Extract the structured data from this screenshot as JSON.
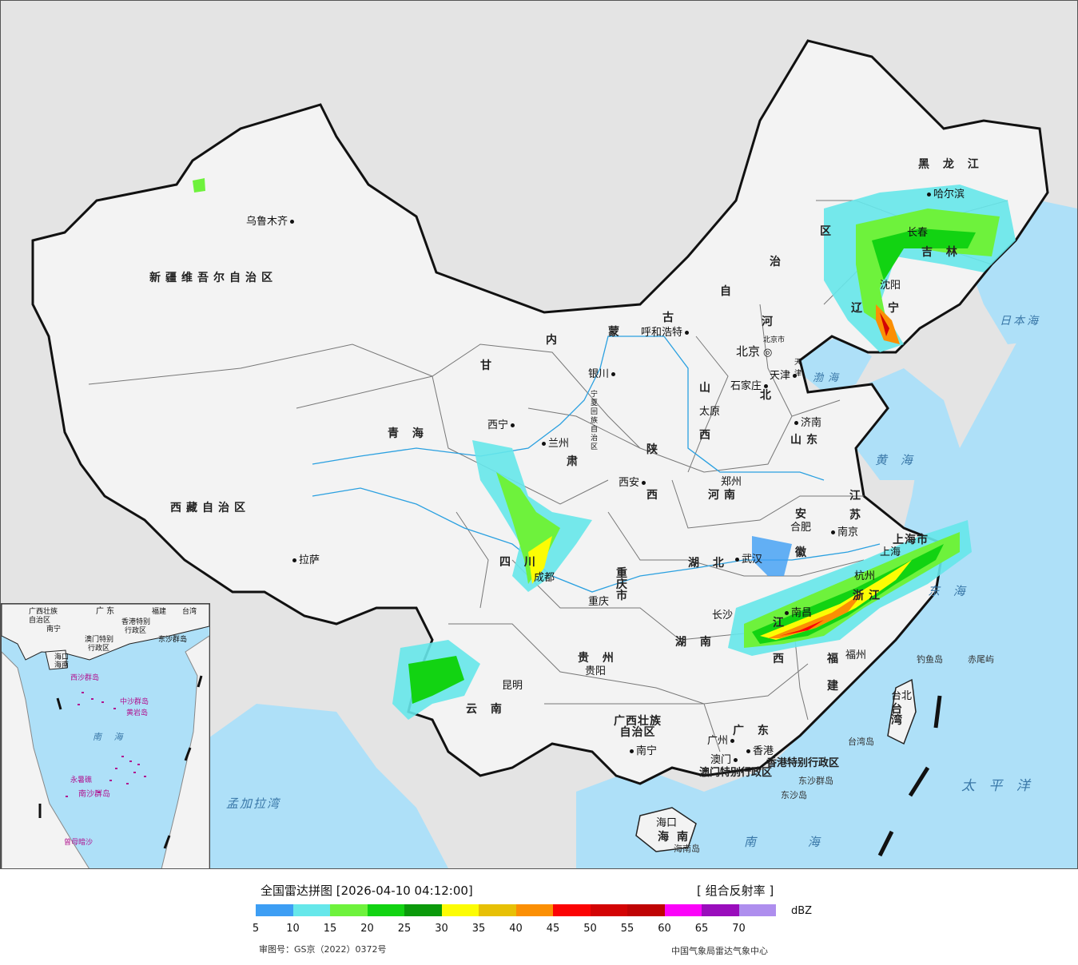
{
  "map": {
    "places": [
      {
        "id": "urumqi",
        "text": "乌鲁木齐",
        "dot": "right"
      },
      {
        "id": "lhasa",
        "text": "拉萨",
        "dot": "left"
      },
      {
        "id": "xining",
        "text": "西宁",
        "dot": "right"
      },
      {
        "id": "lanzhou",
        "text": "兰州",
        "dot": "left"
      },
      {
        "id": "yinchuan",
        "text": "银川",
        "dot": "below"
      },
      {
        "id": "hohhot",
        "text": "呼和浩特",
        "dot": "right"
      },
      {
        "id": "beijing",
        "text": "北京",
        "dot": "right"
      },
      {
        "id": "beijing_small",
        "text": "北京市",
        "dot": "none"
      },
      {
        "id": "tianjin",
        "text": "天津",
        "dot": "right"
      },
      {
        "id": "tianjin_small",
        "text": "天津",
        "dot": "none"
      },
      {
        "id": "shijiazhuang",
        "text": "石家庄",
        "dot": "right"
      },
      {
        "id": "taiyuan",
        "text": "太原",
        "dot": "above"
      },
      {
        "id": "jinan",
        "text": "济南",
        "dot": "left"
      },
      {
        "id": "zhengzhou",
        "text": "郑州",
        "dot": "below"
      },
      {
        "id": "xian",
        "text": "西安",
        "dot": "right"
      },
      {
        "id": "chengdu",
        "text": "成都",
        "dot": "above"
      },
      {
        "id": "chongqing",
        "text": "重庆",
        "dot": "above"
      },
      {
        "id": "wuhan",
        "text": "武汉",
        "dot": "left"
      },
      {
        "id": "hefei",
        "text": "合肥",
        "dot": "above"
      },
      {
        "id": "nanjing",
        "text": "南京",
        "dot": "left"
      },
      {
        "id": "shanghai",
        "text": "上海",
        "dot": "above"
      },
      {
        "id": "hangzhou",
        "text": "杭州",
        "dot": "above"
      },
      {
        "id": "nanchang",
        "text": "南昌",
        "dot": "left"
      },
      {
        "id": "changsha",
        "text": "长沙",
        "dot": "below"
      },
      {
        "id": "guiyang",
        "text": "贵阳",
        "dot": "above"
      },
      {
        "id": "kunming",
        "text": "昆明",
        "dot": "below"
      },
      {
        "id": "nanning",
        "text": "南宁",
        "dot": "left"
      },
      {
        "id": "guangzhou",
        "text": "广州",
        "dot": "right"
      },
      {
        "id": "hongkong",
        "text": "香港",
        "dot": "left"
      },
      {
        "id": "macau",
        "text": "澳门",
        "dot": "right"
      },
      {
        "id": "fuzhou",
        "text": "福州",
        "dot": "below"
      },
      {
        "id": "taibei",
        "text": "台北",
        "dot": "above"
      },
      {
        "id": "haikou",
        "text": "海口",
        "dot": "above"
      },
      {
        "id": "shenyang",
        "text": "沈阳",
        "dot": "below"
      },
      {
        "id": "changchun",
        "text": "长春",
        "dot": "above"
      },
      {
        "id": "harbin",
        "text": "哈尔滨",
        "dot": "left"
      }
    ],
    "regions": [
      {
        "id": "xinjiang",
        "text": "新疆维吾尔自治区"
      },
      {
        "id": "xizang",
        "text": "西藏自治区"
      },
      {
        "id": "qinghai",
        "text": "青 海"
      },
      {
        "id": "gansu_1",
        "text": "甘"
      },
      {
        "id": "gansu_2",
        "text": "肃"
      },
      {
        "id": "neimenggu_1",
        "text": "内"
      },
      {
        "id": "neimenggu_2",
        "text": "蒙"
      },
      {
        "id": "neimenggu_3",
        "text": "古"
      },
      {
        "id": "neimenggu_4",
        "text": "自"
      },
      {
        "id": "neimenggu_5",
        "text": "治"
      },
      {
        "id": "neimenggu_6",
        "text": "区"
      },
      {
        "id": "ningxia",
        "text": "宁夏回族自治区"
      },
      {
        "id": "shaanxi_1",
        "text": "陕"
      },
      {
        "id": "shaanxi_2",
        "text": "西"
      },
      {
        "id": "shanxi_1",
        "text": "山"
      },
      {
        "id": "shanxi_2",
        "text": "西"
      },
      {
        "id": "hebei_1",
        "text": "河"
      },
      {
        "id": "hebei_2",
        "text": "北"
      },
      {
        "id": "shandong",
        "text": "山东"
      },
      {
        "id": "henan",
        "text": "河南"
      },
      {
        "id": "jiangsu_1",
        "text": "江"
      },
      {
        "id": "jiangsu_2",
        "text": "苏"
      },
      {
        "id": "anhui_1",
        "text": "安"
      },
      {
        "id": "anhui_2",
        "text": "徽"
      },
      {
        "id": "shanghai_city",
        "text": "上海市"
      },
      {
        "id": "zhejiang",
        "text": "浙江"
      },
      {
        "id": "hubei",
        "text": "湖 北"
      },
      {
        "id": "hunan",
        "text": "湖 南"
      },
      {
        "id": "jiangxi_1",
        "text": "江"
      },
      {
        "id": "jiangxi_2",
        "text": "西"
      },
      {
        "id": "fujian_1",
        "text": "福"
      },
      {
        "id": "fujian_2",
        "text": "建"
      },
      {
        "id": "sichuan",
        "text": "四 川"
      },
      {
        "id": "chongqing_city",
        "text": "重庆市"
      },
      {
        "id": "guizhou",
        "text": "贵 州"
      },
      {
        "id": "yunnan",
        "text": "云 南"
      },
      {
        "id": "guangxi",
        "text": "广西壮族自治区"
      },
      {
        "id": "guangdong",
        "text": "广 东"
      },
      {
        "id": "hainan",
        "text": "海南"
      },
      {
        "id": "taiwan",
        "text": "台湾"
      },
      {
        "id": "hongkong_sar",
        "text": "香港特别行政区"
      },
      {
        "id": "macau_sar",
        "text": "澳门特别行政区"
      },
      {
        "id": "heilongjiang",
        "text": "黑 龙 江"
      },
      {
        "id": "jilin",
        "text": "吉 林"
      },
      {
        "id": "liaoning_1",
        "text": "辽"
      },
      {
        "id": "liaoning_2",
        "text": "宁"
      }
    ],
    "seas": [
      {
        "id": "bohai",
        "text": "渤海"
      },
      {
        "id": "huanghai",
        "text": "黄 海"
      },
      {
        "id": "donghai",
        "text": "东 海"
      },
      {
        "id": "nanhai",
        "text": "南 海"
      },
      {
        "id": "taipingyang",
        "text": "太 平 洋"
      },
      {
        "id": "ribenhai",
        "text": "日本海"
      },
      {
        "id": "mengjialawan",
        "text": "孟加拉湾"
      }
    ],
    "islands": [
      {
        "id": "diaoyudao",
        "text": "钓鱼岛"
      },
      {
        "id": "chiweiyu",
        "text": "赤尾屿"
      },
      {
        "id": "taiwandao",
        "text": "台湾岛"
      },
      {
        "id": "dongshaqundao",
        "text": "东沙群岛"
      },
      {
        "id": "dongshadao",
        "text": "东沙岛"
      },
      {
        "id": "hainandao",
        "text": "海南岛"
      }
    ]
  },
  "inset": {
    "labels": [
      {
        "id": "guangxi",
        "text": "广西壮族"
      },
      {
        "id": "guangxi2",
        "text": "自治区"
      },
      {
        "id": "nanning",
        "text": "南宁"
      },
      {
        "id": "guangdong",
        "text": "广 东"
      },
      {
        "id": "fujian",
        "text": "福建"
      },
      {
        "id": "taiwan",
        "text": "台湾"
      },
      {
        "id": "hk",
        "text": "香港特别"
      },
      {
        "id": "hk2",
        "text": "行政区"
      },
      {
        "id": "macau",
        "text": "澳门特别"
      },
      {
        "id": "macau2",
        "text": "行政区"
      },
      {
        "id": "dongsha",
        "text": "东沙群岛"
      },
      {
        "id": "haikou",
        "text": "海口"
      },
      {
        "id": "hainan",
        "text": "海南"
      },
      {
        "id": "xisha",
        "text": "西沙群岛"
      },
      {
        "id": "zhongsha",
        "text": "中沙群岛"
      },
      {
        "id": "huangyan",
        "text": "黄岩岛"
      },
      {
        "id": "nanhai",
        "text": "南 海"
      },
      {
        "id": "nansha",
        "text": "南沙群岛"
      },
      {
        "id": "yongshu",
        "text": "永暑礁"
      },
      {
        "id": "zengmu",
        "text": "曾母暗沙"
      }
    ]
  },
  "legend": {
    "title": "全国雷达拼图 [2026-04-10 04:12:00]",
    "product": "[ 组合反射率 ]",
    "unit": "dBZ",
    "colors": [
      "#3d9ef4",
      "#66e7ea",
      "#6ef23c",
      "#12d312",
      "#0b9a0b",
      "#fcfc04",
      "#e7c005",
      "#fb8f04",
      "#fb0304",
      "#d30304",
      "#bf0304",
      "#fb03f9",
      "#9a0dbc",
      "#ae8eee"
    ],
    "ticks": [
      "5",
      "10",
      "15",
      "20",
      "25",
      "30",
      "35",
      "40",
      "45",
      "50",
      "55",
      "60",
      "65",
      "70"
    ],
    "approval": "审图号：GS京（2022）0372号",
    "source": "中国气象局雷达气象中心"
  }
}
